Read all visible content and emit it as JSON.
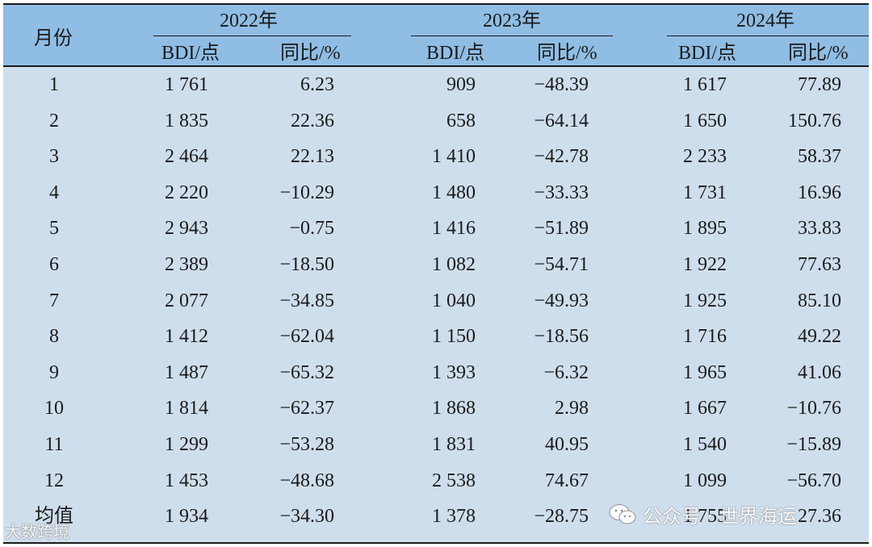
{
  "table": {
    "month_header": "月份",
    "years": [
      "2022年",
      "2023年",
      "2024年"
    ],
    "bdi_label": "BDI/点",
    "yoy_label": "同比/%",
    "rows": [
      {
        "month": "1",
        "v": [
          "1 761",
          "6.23",
          "909",
          "−48.39",
          "1 617",
          "77.89"
        ]
      },
      {
        "month": "2",
        "v": [
          "1 835",
          "22.36",
          "658",
          "−64.14",
          "1 650",
          "150.76"
        ]
      },
      {
        "month": "3",
        "v": [
          "2 464",
          "22.13",
          "1 410",
          "−42.78",
          "2 233",
          "58.37"
        ]
      },
      {
        "month": "4",
        "v": [
          "2 220",
          "−10.29",
          "1 480",
          "−33.33",
          "1 731",
          "16.96"
        ]
      },
      {
        "month": "5",
        "v": [
          "2 943",
          "−0.75",
          "1 416",
          "−51.89",
          "1 895",
          "33.83"
        ]
      },
      {
        "month": "6",
        "v": [
          "2 389",
          "−18.50",
          "1 082",
          "−54.71",
          "1 922",
          "77.63"
        ]
      },
      {
        "month": "7",
        "v": [
          "2 077",
          "−34.85",
          "1 040",
          "−49.93",
          "1 925",
          "85.10"
        ]
      },
      {
        "month": "8",
        "v": [
          "1 412",
          "−62.04",
          "1 150",
          "−18.56",
          "1 716",
          "49.22"
        ]
      },
      {
        "month": "9",
        "v": [
          "1 487",
          "−65.32",
          "1 393",
          "−6.32",
          "1 965",
          "41.06"
        ]
      },
      {
        "month": "10",
        "v": [
          "1 814",
          "−62.37",
          "1 868",
          "2.98",
          "1 667",
          "−10.76"
        ]
      },
      {
        "month": "11",
        "v": [
          "1 299",
          "−53.28",
          "1 831",
          "40.95",
          "1 540",
          "−15.89"
        ]
      },
      {
        "month": "12",
        "v": [
          "1 453",
          "−48.68",
          "2 538",
          "74.67",
          "1 099",
          "−56.70"
        ]
      },
      {
        "month": "均值",
        "v": [
          "1 934",
          "−34.30",
          "1 378",
          "−28.75",
          "1 755",
          "27.36"
        ]
      }
    ]
  },
  "watermarks": {
    "left": "大数跨境",
    "right": "公众号 · 世界海运",
    "right_icon": "wechat-icon"
  },
  "colors": {
    "header_bg": "#8fbde4",
    "body_bg": "#cfdeec"
  }
}
